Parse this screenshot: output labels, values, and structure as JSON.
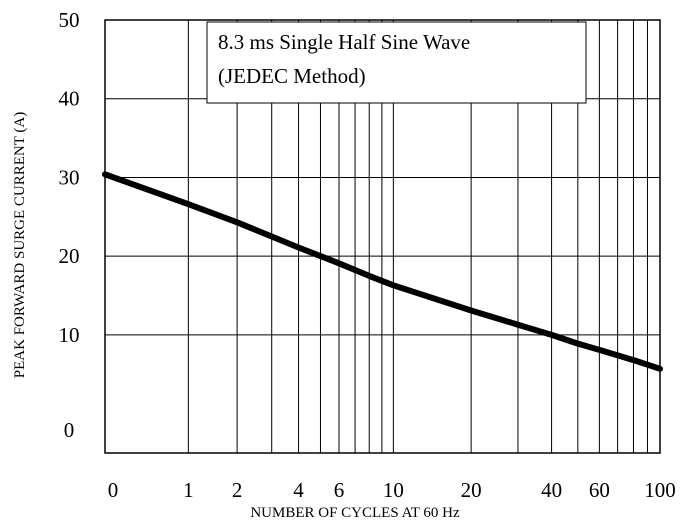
{
  "chart_data": {
    "type": "line",
    "title": "",
    "xlabel": "NUMBER OF CYCLES AT 60 Hz",
    "ylabel": "PEAK FORWARD SURGE CURRENT (A)",
    "x_scale": "log",
    "xlim": [
      0,
      100
    ],
    "ylim": [
      0,
      50
    ],
    "x_ticks": [
      {
        "value": 0,
        "label": "0"
      },
      {
        "value": 1,
        "label": "1"
      },
      {
        "value": 2,
        "label": "2"
      },
      {
        "value": 4,
        "label": "4"
      },
      {
        "value": 6,
        "label": "6"
      },
      {
        "value": 10,
        "label": "10"
      },
      {
        "value": 20,
        "label": "20"
      },
      {
        "value": 40,
        "label": "40"
      },
      {
        "value": 60,
        "label": "60"
      },
      {
        "value": 100,
        "label": "100"
      }
    ],
    "y_ticks": [
      {
        "value": 0,
        "label": "0"
      },
      {
        "value": 10,
        "label": "10"
      },
      {
        "value": 20,
        "label": "20"
      },
      {
        "value": 30,
        "label": "30"
      },
      {
        "value": 40,
        "label": "40"
      },
      {
        "value": 50,
        "label": "50"
      }
    ],
    "x_gridlines": [
      1,
      2,
      3,
      4,
      5,
      6,
      7,
      8,
      9,
      10,
      20,
      30,
      40,
      50,
      60,
      70,
      80,
      90
    ],
    "y_gridlines": [
      10,
      20,
      30,
      40
    ],
    "grid": true,
    "annotation": {
      "lines": [
        "8.3 ms Single Half Sine Wave",
        "(JEDEC Method)"
      ]
    },
    "series": [
      {
        "x": [
          0,
          1,
          2,
          3,
          4,
          6,
          8,
          10,
          20,
          30,
          40,
          50,
          60,
          80,
          100
        ],
        "y": [
          30.4,
          26.6,
          24.3,
          22.5,
          21.1,
          19.1,
          17.5,
          16.3,
          13.1,
          11.3,
          10.0,
          8.9,
          8.1,
          6.8,
          5.7
        ]
      }
    ],
    "colors": {
      "line": "#000000",
      "grid": "#000000",
      "background": "#ffffff"
    }
  }
}
